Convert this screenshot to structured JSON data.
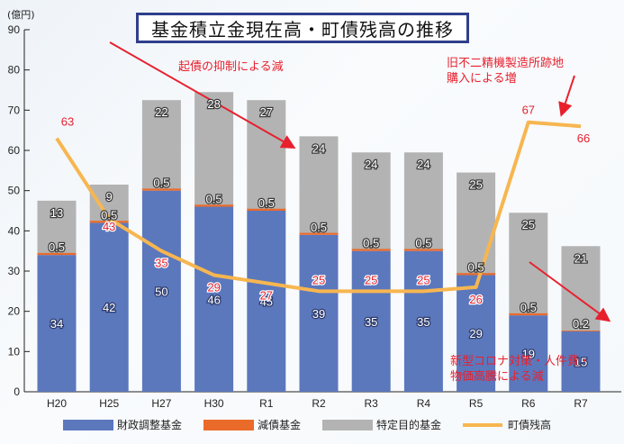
{
  "chart_data": {
    "type": "bar",
    "stacked": true,
    "title": "基金積立金現在高・町債残高の推移",
    "ylabel": "(億円)",
    "xlabel": "",
    "ylim": [
      0,
      90
    ],
    "yticks": [
      0,
      10,
      20,
      30,
      40,
      50,
      60,
      70,
      80,
      90
    ],
    "categories": [
      "H20",
      "H25",
      "H27",
      "H30",
      "R1",
      "R2",
      "R3",
      "R4",
      "R5",
      "R6",
      "R7"
    ],
    "series": [
      {
        "name": "財政調整基金",
        "kind": "bar",
        "color": "#5b78bd",
        "values": [
          34,
          42,
          50,
          46,
          45,
          39,
          35,
          35,
          29,
          19,
          15
        ]
      },
      {
        "name": "減債基金",
        "kind": "bar",
        "color": "#ea6a2a",
        "values": [
          0.5,
          0.5,
          0.5,
          0.5,
          0.5,
          0.5,
          0.5,
          0.5,
          0.5,
          0.5,
          0.2
        ]
      },
      {
        "name": "特定目的基金",
        "kind": "bar",
        "color": "#b3b3b3",
        "values": [
          13,
          9,
          22,
          28,
          27,
          24,
          24,
          24,
          25,
          25,
          21
        ]
      },
      {
        "name": "町債残高",
        "kind": "line",
        "color": "#f7b650",
        "values": [
          63,
          43,
          35,
          29,
          27,
          25,
          25,
          25,
          26,
          67,
          66
        ]
      }
    ],
    "legend_position": "bottom",
    "grid": false,
    "annotations": [
      {
        "text": "起債の抑制による減"
      },
      {
        "text": "旧不二精機製造所跡地\n購入による増"
      },
      {
        "text": "新型コロナ対策・人件費・\n物価高騰による減"
      }
    ]
  },
  "labels": {
    "title": "基金積立金現在高・町債残高の推移",
    "unit": "(億円)",
    "annot1": "起債の抑制による減",
    "annot2_line1": "旧不二精機製造所跡地",
    "annot2_line2": "購入による増",
    "annot3_line1": "新型コロナ対策・人件費・",
    "annot3_line2": "物価高騰による減",
    "legend": [
      "財政調整基金",
      "減債基金",
      "特定目的基金",
      "町債残高"
    ]
  }
}
